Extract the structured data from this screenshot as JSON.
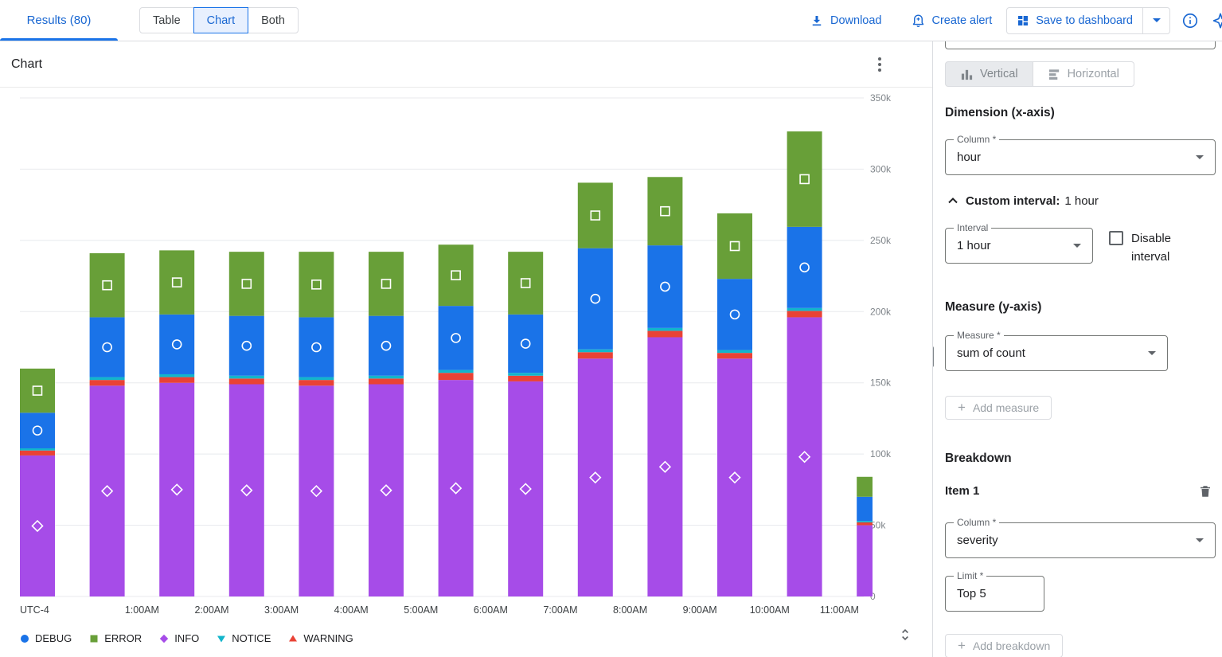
{
  "topbar": {
    "results_tab": "Results (80)",
    "view_options": [
      "Table",
      "Chart",
      "Both"
    ],
    "selected_view": "Chart",
    "download_label": "Download",
    "create_alert_label": "Create alert",
    "save_to_dashboard_label": "Save to dashboard"
  },
  "chart": {
    "title": "Chart"
  },
  "chart_data": {
    "type": "bar",
    "stacked": true,
    "title": "Chart",
    "xlabel": "",
    "ylabel": "",
    "grid": true,
    "legend_position": "bottom",
    "x_tick_labels": [
      "UTC-4",
      "1:00AM",
      "2:00AM",
      "3:00AM",
      "4:00AM",
      "5:00AM",
      "6:00AM",
      "7:00AM",
      "8:00AM",
      "9:00AM",
      "10:00AM",
      "11:00AM"
    ],
    "x_count": 13,
    "ylim": [
      0,
      350000
    ],
    "ytick_step": 50000,
    "stack_order": [
      "INFO",
      "WARNING",
      "NOTICE",
      "DEBUG",
      "ERROR"
    ],
    "legend_order": [
      "DEBUG",
      "ERROR",
      "INFO",
      "NOTICE",
      "WARNING"
    ],
    "series": [
      {
        "name": "DEBUG",
        "color": "#1a73e8",
        "marker": "circle",
        "values": [
          25000,
          42000,
          42000,
          42000,
          42000,
          42000,
          45000,
          41000,
          71000,
          58000,
          50000,
          57000,
          17000
        ]
      },
      {
        "name": "ERROR",
        "color": "#689f38",
        "marker": "square",
        "values": [
          31000,
          45000,
          45000,
          45000,
          46000,
          45000,
          43000,
          44000,
          46000,
          48000,
          46000,
          67000,
          14000
        ]
      },
      {
        "name": "INFO",
        "color": "#a64ce8",
        "marker": "diamond",
        "values": [
          99000,
          148000,
          150000,
          149000,
          148000,
          149000,
          152000,
          151000,
          167000,
          182000,
          167000,
          196000,
          50000
        ]
      },
      {
        "name": "NOTICE",
        "color": "#12b5cb",
        "marker": "triangle-down",
        "values": [
          1500,
          2000,
          2000,
          2000,
          2000,
          2000,
          2000,
          2000,
          2000,
          2000,
          2000,
          2000,
          1000
        ]
      },
      {
        "name": "WARNING",
        "color": "#e94235",
        "marker": "triangle-up",
        "values": [
          3500,
          4000,
          4000,
          4000,
          4000,
          4000,
          5000,
          4000,
          4500,
          4500,
          4000,
          4500,
          2000
        ]
      }
    ]
  },
  "panel": {
    "orientation": {
      "vertical_label": "Vertical",
      "horizontal_label": "Horizontal",
      "selected": "Vertical"
    },
    "dimension": {
      "heading": "Dimension (x-axis)",
      "column_label": "Column *",
      "column_value": "hour",
      "custom_interval_label": "Custom interval:",
      "custom_interval_value": "1 hour",
      "interval_label": "Interval",
      "interval_value": "1 hour",
      "disable_interval_label": "Disable interval",
      "disable_interval_checked": false
    },
    "measure": {
      "heading": "Measure (y-axis)",
      "measure_label": "Measure *",
      "measure_value": "sum of count",
      "add_measure_label": "Add measure"
    },
    "breakdown": {
      "heading": "Breakdown",
      "item_label": "Item 1",
      "column_label": "Column *",
      "column_value": "severity",
      "limit_label": "Limit *",
      "limit_value": "Top 5",
      "add_breakdown_label": "Add breakdown"
    }
  }
}
